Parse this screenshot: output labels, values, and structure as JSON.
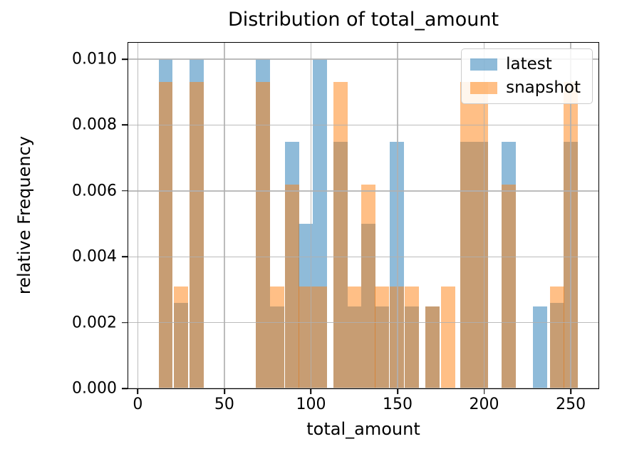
{
  "chart_data": {
    "type": "bar",
    "subtype": "overlapping-histogram",
    "title": "Distribution of total_amount",
    "xlabel": "total_amount",
    "ylabel": "relative Frequency",
    "xlim": [
      -5.5,
      266
    ],
    "ylim": [
      0,
      0.0105
    ],
    "x_ticks": [
      {
        "value": 0,
        "label": "0"
      },
      {
        "value": 50,
        "label": "50"
      },
      {
        "value": 100,
        "label": "100"
      },
      {
        "value": 150,
        "label": "150"
      },
      {
        "value": 200,
        "label": "200"
      },
      {
        "value": 250,
        "label": "250"
      }
    ],
    "y_ticks": [
      {
        "value": 0.0,
        "label": "0.000"
      },
      {
        "value": 0.002,
        "label": "0.002"
      },
      {
        "value": 0.004,
        "label": "0.004"
      },
      {
        "value": 0.006,
        "label": "0.006"
      },
      {
        "value": 0.008,
        "label": "0.008"
      },
      {
        "value": 0.01,
        "label": "0.010"
      }
    ],
    "grid": true,
    "bar_alpha": 0.5,
    "bin_width": 8.2,
    "series": [
      {
        "name": "latest",
        "color": "#1f77b4"
      },
      {
        "name": "snapshot",
        "color": "#ff7f0e"
      }
    ],
    "bins": [
      {
        "x": 12,
        "latest": 0.01,
        "snapshot": 0.0093
      },
      {
        "x": 21,
        "latest": 0.0026,
        "snapshot": 0.0031
      },
      {
        "x": 30,
        "latest": 0.01,
        "snapshot": 0.0093
      },
      {
        "x": 68,
        "latest": 0.01,
        "snapshot": 0.0093
      },
      {
        "x": 76.5,
        "latest": 0.0025,
        "snapshot": 0.0031
      },
      {
        "x": 85,
        "latest": 0.0075,
        "snapshot": 0.0062
      },
      {
        "x": 93,
        "latest": 0.005,
        "snapshot": 0.0031
      },
      {
        "x": 101,
        "latest": 0.01,
        "snapshot": 0.0031
      },
      {
        "x": 113,
        "latest": 0.0075,
        "snapshot": 0.0093
      },
      {
        "x": 121,
        "latest": 0.0025,
        "snapshot": 0.0031
      },
      {
        "x": 129,
        "latest": 0.005,
        "snapshot": 0.0062
      },
      {
        "x": 137,
        "latest": 0.0025,
        "snapshot": 0.0031
      },
      {
        "x": 145.5,
        "latest": 0.0075,
        "snapshot": 0.0031
      },
      {
        "x": 154,
        "latest": 0.0025,
        "snapshot": 0.0031
      },
      {
        "x": 166,
        "latest": 0.0025,
        "snapshot": 0.0025
      },
      {
        "x": 175,
        "latest": 0.0,
        "snapshot": 0.0031
      },
      {
        "x": 186,
        "latest": 0.0075,
        "snapshot": 0.0093
      },
      {
        "x": 194,
        "latest": 0.0075,
        "snapshot": 0.0093
      },
      {
        "x": 210,
        "latest": 0.0075,
        "snapshot": 0.0062
      },
      {
        "x": 228,
        "latest": 0.0025,
        "snapshot": 0.0
      },
      {
        "x": 238,
        "latest": 0.0026,
        "snapshot": 0.0031
      },
      {
        "x": 246,
        "latest": 0.0075,
        "snapshot": 0.0093
      }
    ],
    "legend": {
      "position": "upper right",
      "entries": [
        {
          "label": "latest",
          "color": "#1f77b4"
        },
        {
          "label": "snapshot",
          "color": "#ff7f0e"
        }
      ]
    }
  }
}
